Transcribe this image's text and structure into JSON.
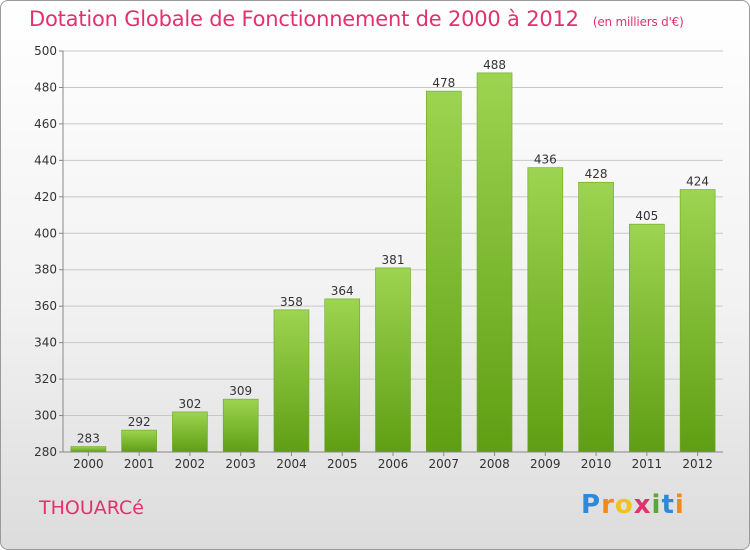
{
  "chart_data": {
    "type": "bar",
    "title": "Dotation Globale de Fonctionnement de 2000 à 2012",
    "subtitle": "(en milliers d'€)",
    "categories": [
      "2000",
      "2001",
      "2002",
      "2003",
      "2004",
      "2005",
      "2006",
      "2007",
      "2008",
      "2009",
      "2010",
      "2011",
      "2012"
    ],
    "values": [
      283,
      292,
      302,
      309,
      358,
      364,
      381,
      478,
      488,
      436,
      428,
      405,
      424
    ],
    "ylim": [
      280,
      500
    ],
    "yticks": [
      280,
      300,
      320,
      340,
      360,
      380,
      400,
      420,
      440,
      460,
      480,
      500
    ],
    "grid": true,
    "bar_color": "#7fc232"
  },
  "place_name": "THOUARCé",
  "logo_text": "Proxiti"
}
